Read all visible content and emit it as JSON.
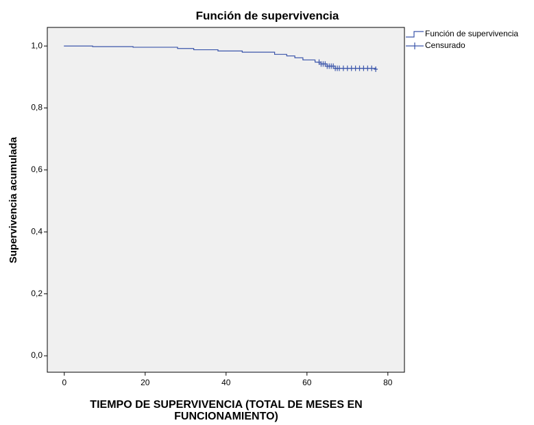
{
  "chart_data": {
    "type": "step",
    "title": "Función de supervivencia",
    "xlabel": "TIEMPO DE SUPERVIVENCIA (TOTAL DE MESES EN FUNCIONAMIENTO)",
    "ylabel": "Supervivencia acumulada",
    "xlim": [
      -4.2,
      84.1
    ],
    "ylim": [
      -0.053,
      1.06
    ],
    "xticks": [
      0,
      20,
      40,
      60,
      80
    ],
    "yticks": [
      {
        "value": 0,
        "label": "0,0"
      },
      {
        "value": 0.2,
        "label": "0,2"
      },
      {
        "value": 0.4,
        "label": "0,4"
      },
      {
        "value": 0.6,
        "label": "0,6"
      },
      {
        "value": 0.8,
        "label": "0,8"
      },
      {
        "value": 1.0,
        "label": "1,0"
      }
    ],
    "legend": "outside-top-right",
    "series": [
      {
        "name": "Función de supervivencia",
        "color": "#3a55aa",
        "x": [
          0,
          7,
          17,
          28,
          32,
          38,
          44,
          52,
          55,
          57,
          59,
          62,
          63.5,
          65,
          67,
          77
        ],
        "values": [
          1.0,
          0.998,
          0.996,
          0.992,
          0.988,
          0.984,
          0.98,
          0.973,
          0.968,
          0.962,
          0.955,
          0.948,
          0.942,
          0.935,
          0.928,
          0.925
        ]
      },
      {
        "name": "Censurado",
        "color": "#3a55aa",
        "x": [
          63,
          63.5,
          64,
          64.5,
          65,
          65.5,
          66,
          66.5,
          67,
          67.5,
          68,
          69,
          70,
          71,
          72,
          73,
          74,
          75,
          76,
          77
        ],
        "values": [
          0.948,
          0.942,
          0.942,
          0.942,
          0.935,
          0.935,
          0.935,
          0.935,
          0.928,
          0.928,
          0.928,
          0.928,
          0.928,
          0.928,
          0.928,
          0.928,
          0.928,
          0.928,
          0.928,
          0.925
        ]
      }
    ]
  }
}
